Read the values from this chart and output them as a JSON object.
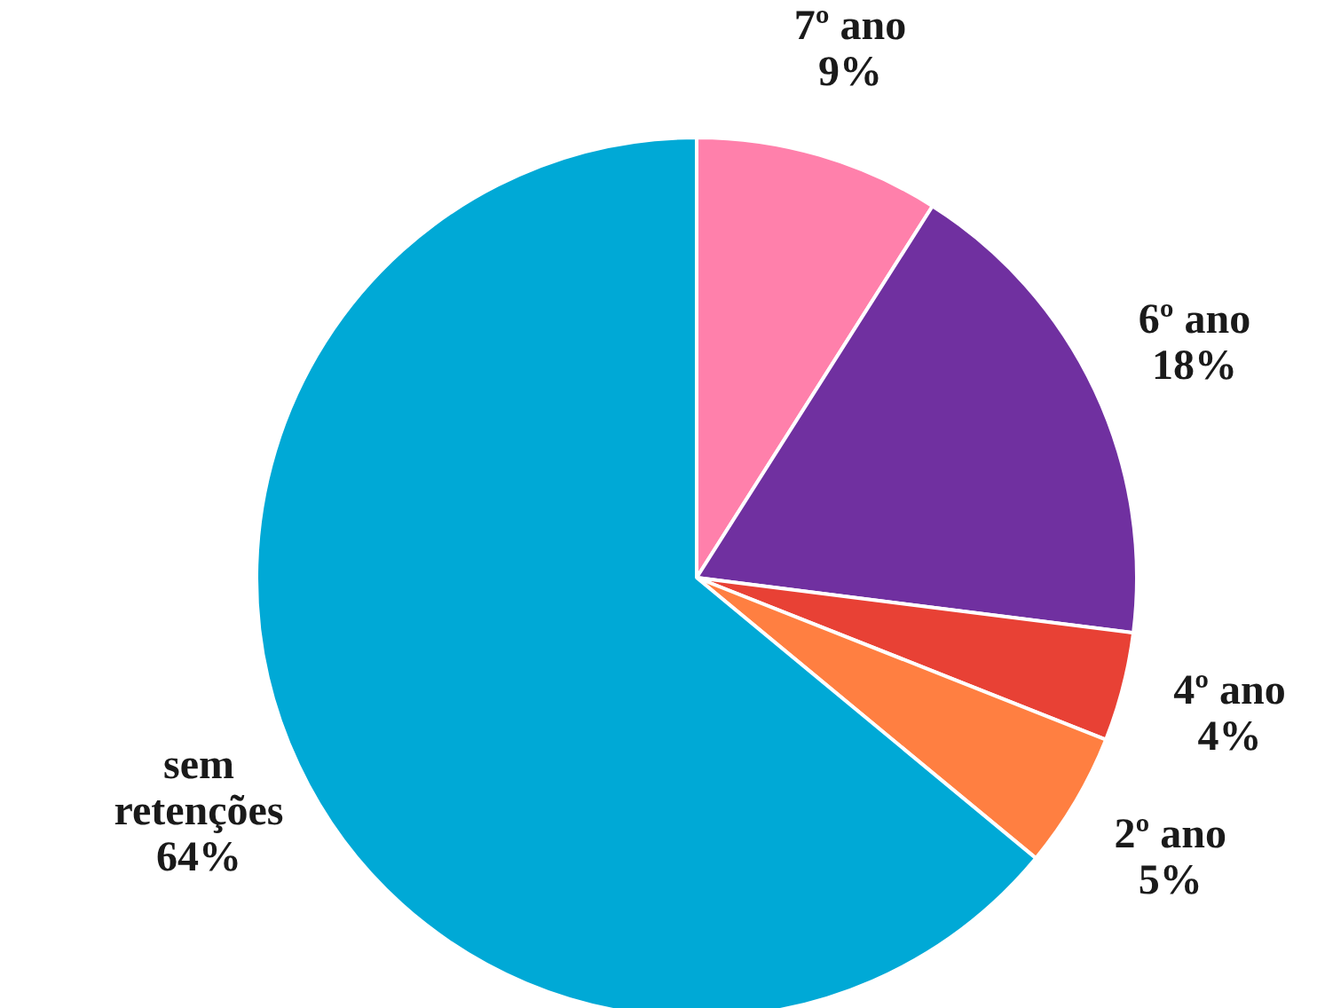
{
  "chart_data": {
    "type": "pie",
    "categories": [
      "7º ano",
      "6º ano",
      "4º ano",
      "2º ano",
      "sem retenções"
    ],
    "values": [
      9,
      18,
      4,
      5,
      64
    ],
    "colors": [
      "#ff80ab",
      "#7030a0",
      "#e84135",
      "#ff7f41",
      "#00a9d6"
    ],
    "value_labels": [
      "9%",
      "18%",
      "4%",
      "5%",
      "64%"
    ]
  }
}
